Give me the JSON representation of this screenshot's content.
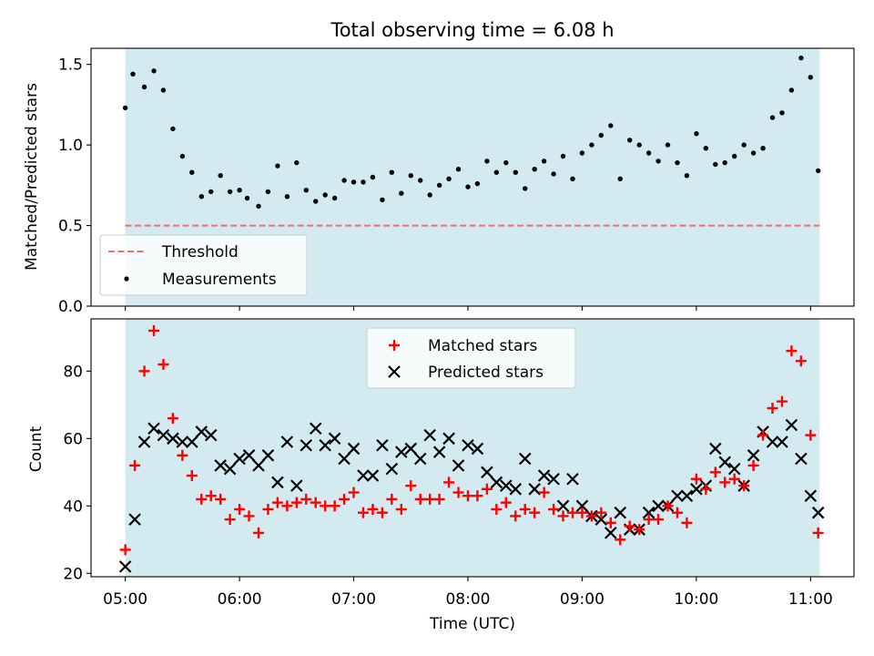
{
  "chart_data": [
    {
      "type": "scatter",
      "title": "Total observing time = 6.08 h",
      "xlabel": "",
      "ylabel": "Matched/Predicted stars",
      "ylim": [
        0,
        1.6
      ],
      "yticks": [
        "0.0",
        "0.5",
        "1.0",
        "1.5"
      ],
      "xlim_hours": [
        4.7,
        11.38
      ],
      "shaded_span_hours": [
        5.0,
        11.08
      ],
      "shade_color": "#d3eaf0",
      "threshold": {
        "label": "Threshold",
        "value": 0.5,
        "color": "#f26d6d"
      },
      "legend": {
        "placement": "lower left",
        "entries": [
          "Threshold",
          "Measurements"
        ]
      },
      "series": [
        {
          "name": "Measurements",
          "color": "#000000",
          "x": [
            5.0,
            5.0667,
            5.1667,
            5.25,
            5.3333,
            5.4167,
            5.5,
            5.5833,
            5.6667,
            5.75,
            5.8333,
            5.9167,
            6.0,
            6.0667,
            6.1667,
            6.25,
            6.3333,
            6.4167,
            6.5,
            6.5833,
            6.6667,
            6.75,
            6.8333,
            6.9167,
            7.0,
            7.0833,
            7.1667,
            7.25,
            7.3333,
            7.4167,
            7.5,
            7.5833,
            7.6667,
            7.75,
            7.8333,
            7.9167,
            8.0,
            8.0833,
            8.1667,
            8.25,
            8.3333,
            8.4167,
            8.5,
            8.5833,
            8.6667,
            8.75,
            8.8333,
            8.9167,
            9.0,
            9.0833,
            9.1667,
            9.25,
            9.3333,
            9.4167,
            9.5,
            9.5833,
            9.6667,
            9.75,
            9.8333,
            9.9167,
            10.0,
            10.0833,
            10.1667,
            10.25,
            10.3333,
            10.4167,
            10.5,
            10.5833,
            10.6667,
            10.75,
            10.8333,
            10.9167,
            11.0,
            11.0667
          ],
          "y": [
            1.23,
            1.44,
            1.36,
            1.46,
            1.34,
            1.1,
            0.93,
            0.83,
            0.68,
            0.71,
            0.81,
            0.71,
            0.72,
            0.67,
            0.62,
            0.71,
            0.87,
            0.68,
            0.89,
            0.72,
            0.65,
            0.69,
            0.67,
            0.78,
            0.77,
            0.77,
            0.8,
            0.66,
            0.83,
            0.7,
            0.81,
            0.78,
            0.69,
            0.75,
            0.79,
            0.85,
            0.74,
            0.76,
            0.9,
            0.83,
            0.89,
            0.83,
            0.73,
            0.85,
            0.9,
            0.82,
            0.93,
            0.79,
            0.95,
            1.0,
            1.06,
            1.12,
            0.79,
            1.03,
            1.0,
            0.95,
            0.9,
            1.0,
            0.89,
            0.81,
            1.07,
            0.98,
            0.88,
            0.89,
            0.93,
            1.0,
            0.95,
            0.98,
            1.17,
            1.2,
            1.34,
            1.54,
            1.42,
            0.84
          ]
        }
      ]
    },
    {
      "type": "scatter",
      "title": "",
      "xlabel": "Time (UTC)",
      "ylabel": "Count",
      "ylim": [
        19,
        95.5
      ],
      "yticks": [
        "20",
        "40",
        "60",
        "80"
      ],
      "xticks": [
        "05:00",
        "06:00",
        "07:00",
        "08:00",
        "09:00",
        "10:00",
        "11:00"
      ],
      "xlim_hours": [
        4.7,
        11.38
      ],
      "shaded_span_hours": [
        5.0,
        11.08
      ],
      "legend": {
        "placement": "upper center",
        "entries": [
          "Matched stars",
          "Predicted stars"
        ]
      },
      "series": [
        {
          "name": "Matched stars",
          "marker": "plus",
          "color": "#ff0000",
          "x": [
            5.0,
            5.0833,
            5.1667,
            5.25,
            5.3333,
            5.4167,
            5.5,
            5.5833,
            5.6667,
            5.75,
            5.8333,
            5.9167,
            6.0,
            6.0833,
            6.1667,
            6.25,
            6.3333,
            6.4167,
            6.5,
            6.5833,
            6.6667,
            6.75,
            6.8333,
            6.9167,
            7.0,
            7.0833,
            7.1667,
            7.25,
            7.3333,
            7.4167,
            7.5,
            7.5833,
            7.6667,
            7.75,
            7.8333,
            7.9167,
            8.0,
            8.0833,
            8.1667,
            8.25,
            8.3333,
            8.4167,
            8.5,
            8.5833,
            8.6667,
            8.75,
            8.8333,
            8.9167,
            9.0,
            9.0833,
            9.1667,
            9.25,
            9.3333,
            9.4167,
            9.5,
            9.5833,
            9.6667,
            9.75,
            9.8333,
            9.9167,
            10.0,
            10.0833,
            10.1667,
            10.25,
            10.3333,
            10.4167,
            10.5,
            10.5833,
            10.6667,
            10.75,
            10.8333,
            10.9167,
            11.0,
            11.0667
          ],
          "y": [
            27,
            52,
            80,
            92,
            82,
            66,
            55,
            49,
            42,
            43,
            42,
            36,
            39,
            37,
            32,
            39,
            41,
            40,
            41,
            42,
            41,
            40,
            40,
            42,
            44,
            38,
            39,
            38,
            42,
            39,
            46,
            42,
            42,
            42,
            47,
            44,
            43,
            43,
            45,
            39,
            41,
            37,
            39,
            38,
            44,
            39,
            37,
            38,
            38,
            37,
            38,
            35,
            30,
            34,
            33,
            36,
            36,
            40,
            38,
            35,
            48,
            45,
            50,
            47,
            48,
            46,
            52,
            61,
            69,
            71,
            86,
            83,
            61,
            32
          ]
        },
        {
          "name": "Predicted stars",
          "marker": "x",
          "color": "#000000",
          "x": [
            5.0,
            5.0833,
            5.1667,
            5.25,
            5.3333,
            5.4167,
            5.5,
            5.5833,
            5.6667,
            5.75,
            5.8333,
            5.9167,
            6.0,
            6.0833,
            6.1667,
            6.25,
            6.3333,
            6.4167,
            6.5,
            6.5833,
            6.6667,
            6.75,
            6.8333,
            6.9167,
            7.0,
            7.0833,
            7.1667,
            7.25,
            7.3333,
            7.4167,
            7.5,
            7.5833,
            7.6667,
            7.75,
            7.8333,
            7.9167,
            8.0,
            8.0833,
            8.1667,
            8.25,
            8.3333,
            8.4167,
            8.5,
            8.5833,
            8.6667,
            8.75,
            8.8333,
            8.9167,
            9.0,
            9.0833,
            9.1667,
            9.25,
            9.3333,
            9.4167,
            9.5,
            9.5833,
            9.6667,
            9.75,
            9.8333,
            9.9167,
            10.0,
            10.0833,
            10.1667,
            10.25,
            10.3333,
            10.4167,
            10.5,
            10.5833,
            10.6667,
            10.75,
            10.8333,
            10.9167,
            11.0,
            11.0667
          ],
          "y": [
            22,
            36,
            59,
            63,
            61,
            60,
            59,
            59,
            62,
            61,
            52,
            51,
            54,
            55,
            52,
            55,
            47,
            59,
            46,
            58,
            63,
            58,
            60,
            54,
            57,
            49,
            49,
            58,
            51,
            56,
            57,
            54,
            61,
            56,
            60,
            52,
            58,
            57,
            50,
            47,
            46,
            45,
            54,
            45,
            49,
            48,
            40,
            48,
            40,
            37,
            36,
            32,
            38,
            33,
            33,
            38,
            40,
            40,
            43,
            43,
            45,
            46,
            57,
            53,
            51,
            46,
            55,
            62,
            59,
            59,
            64,
            54,
            43,
            38
          ]
        }
      ]
    }
  ]
}
